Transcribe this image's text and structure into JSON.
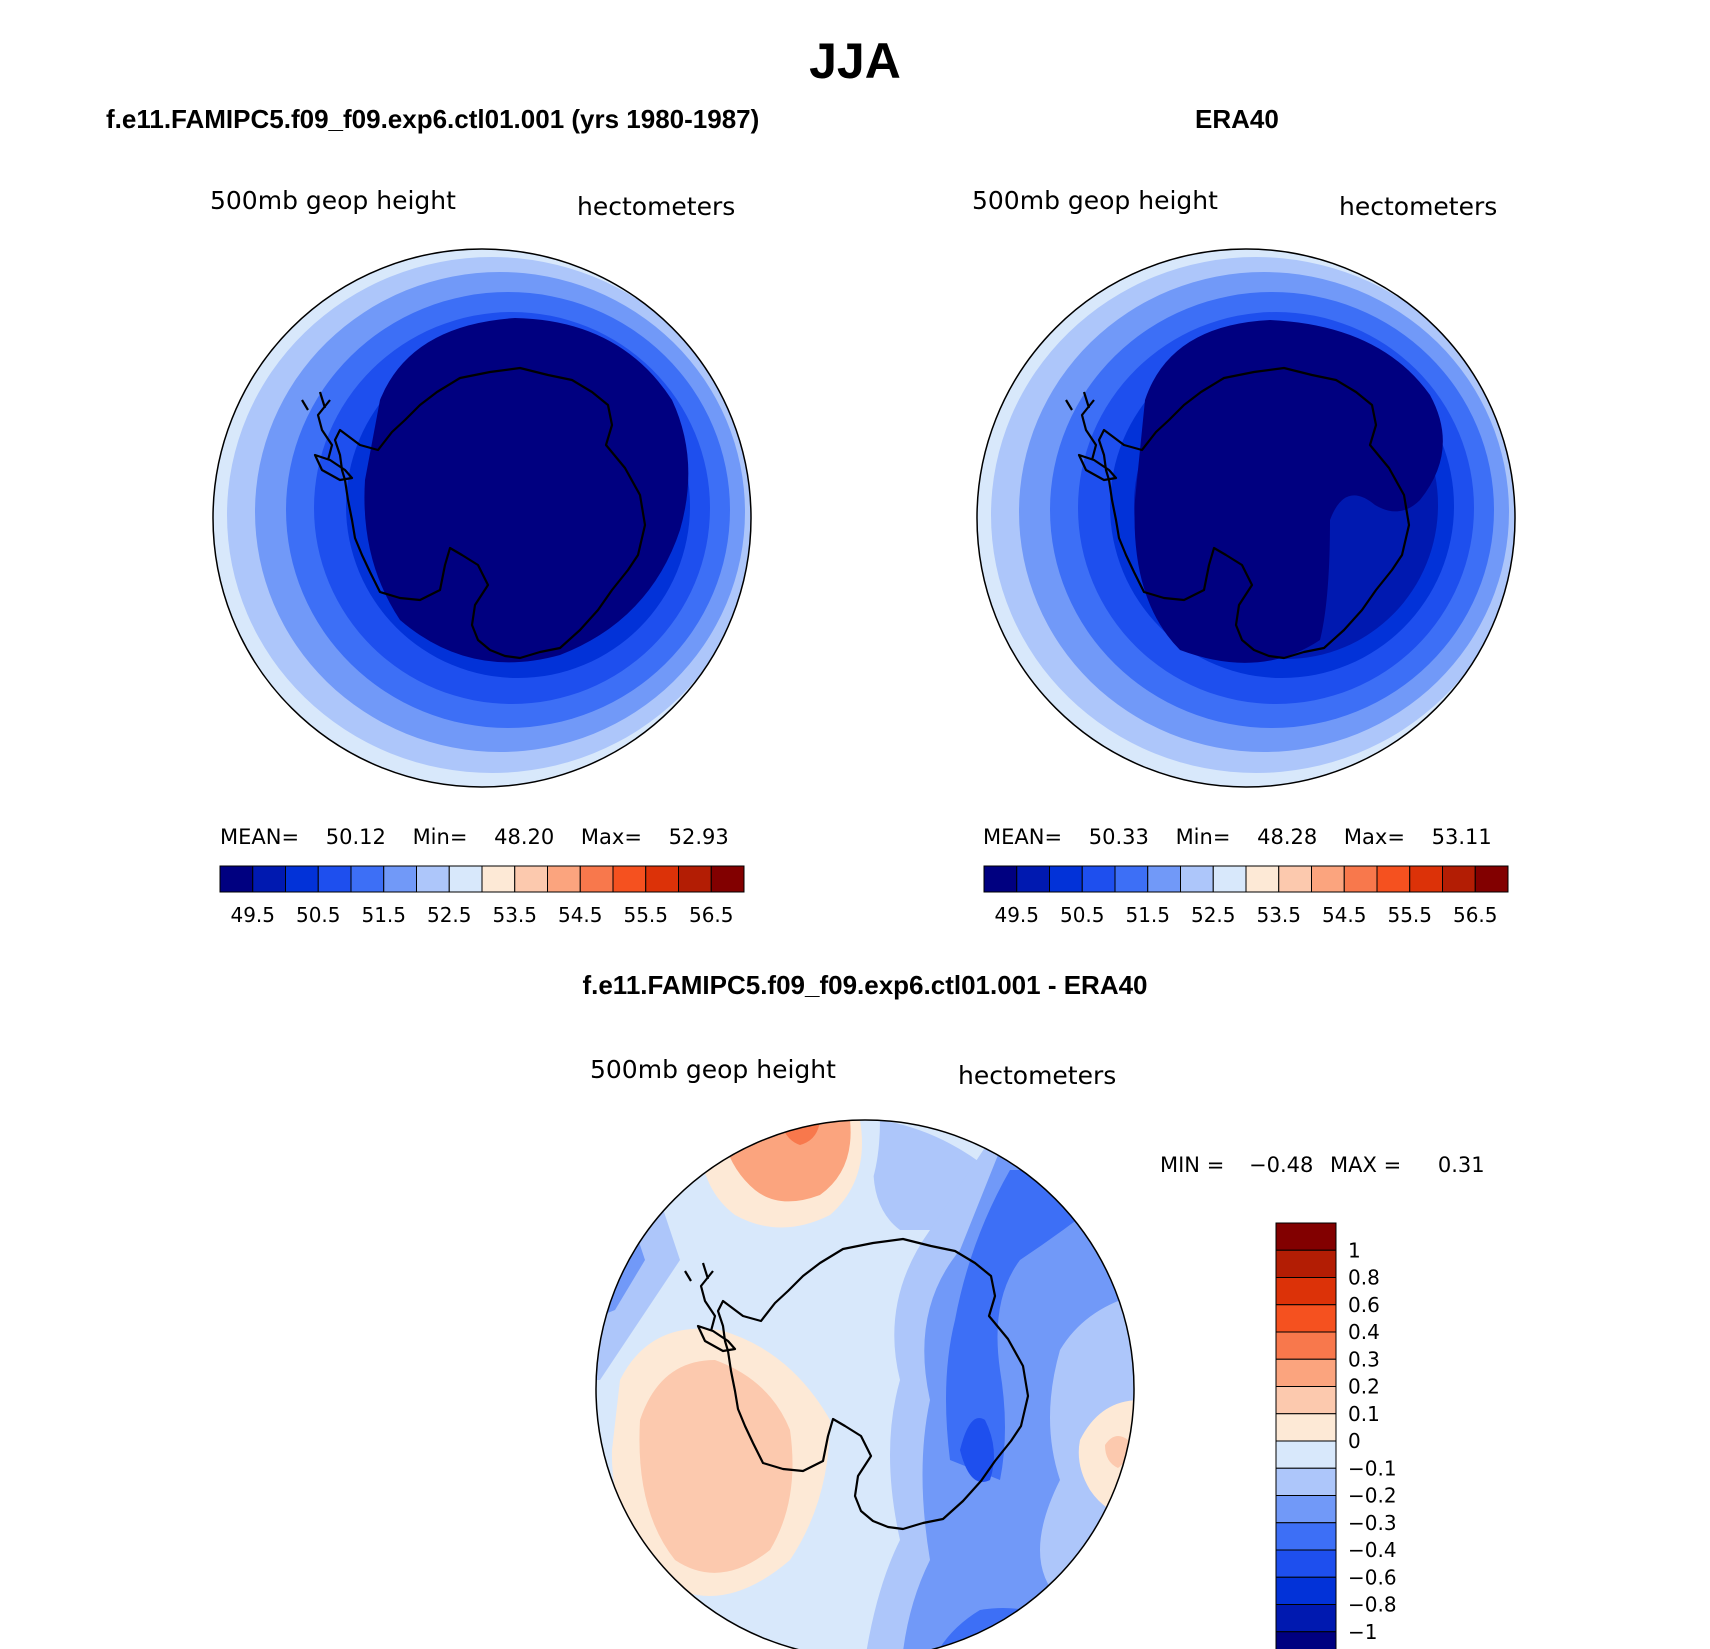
{
  "title": "JJA",
  "panels": {
    "model": {
      "case": "f.e11.FAMIPC5.f09_f09.exp6.ctl01.001 (yrs 1980-1987)",
      "variable": "500mb geop height",
      "units": "hectometers",
      "stats": {
        "mean_label": "MEAN=",
        "mean": "50.12",
        "min_label": "Min=",
        "min": "48.20",
        "max_label": "Max=",
        "max": "52.93"
      }
    },
    "obs": {
      "case": "ERA40",
      "variable": "500mb geop height",
      "units": "hectometers",
      "stats": {
        "mean_label": "MEAN=",
        "mean": "50.33",
        "min_label": "Min=",
        "min": "48.28",
        "max_label": "Max=",
        "max": "53.11"
      }
    },
    "diff": {
      "case": "f.e11.FAMIPC5.f09_f09.exp6.ctl01.001 - ERA40",
      "variable": "500mb geop height",
      "units": "hectometers",
      "stats": {
        "min_label": "MIN =",
        "min": "−0.48",
        "max_label": "MAX =",
        "max": "0.31"
      }
    }
  },
  "colorbars": {
    "absolute": {
      "orientation": "horizontal",
      "tick_labels": [
        "49.5",
        "50.5",
        "51.5",
        "52.5",
        "53.5",
        "54.5",
        "55.5",
        "56.5"
      ],
      "colors": [
        "#000080",
        "#0019b0",
        "#0232d8",
        "#1e4fee",
        "#3d6ff6",
        "#7199f8",
        "#adc6fa",
        "#d8e8fb",
        "#fde9d6",
        "#fcc9ae",
        "#fba47e",
        "#f8784c",
        "#f5511f",
        "#dc3208",
        "#b31d04",
        "#820000"
      ]
    },
    "difference": {
      "orientation": "vertical",
      "tick_labels": [
        "1",
        "0.8",
        "0.6",
        "0.4",
        "0.3",
        "0.2",
        "0.1",
        "0",
        "−0.1",
        "−0.2",
        "−0.3",
        "−0.4",
        "−0.6",
        "−0.8",
        "−1"
      ],
      "colors_top_to_bottom": [
        "#820000",
        "#b31d04",
        "#dc3208",
        "#f5511f",
        "#f8784c",
        "#fba47e",
        "#fcc9ae",
        "#fde9d6",
        "#d8e8fb",
        "#adc6fa",
        "#7199f8",
        "#3d6ff6",
        "#1e4fee",
        "#0232d8",
        "#0019b0",
        "#000080"
      ]
    }
  },
  "map_colors": {
    "z1": "#d8e8fb",
    "z2": "#adc6fa",
    "z3": "#7199f8",
    "z4": "#3d6ff6",
    "z5": "#1e4fee",
    "z6": "#0232d8",
    "z7": "#0019b0",
    "z8": "#000080",
    "pos1": "#fde9d6",
    "pos2": "#fcc9ae",
    "pos3": "#fba47e",
    "pos4": "#f8784c"
  }
}
